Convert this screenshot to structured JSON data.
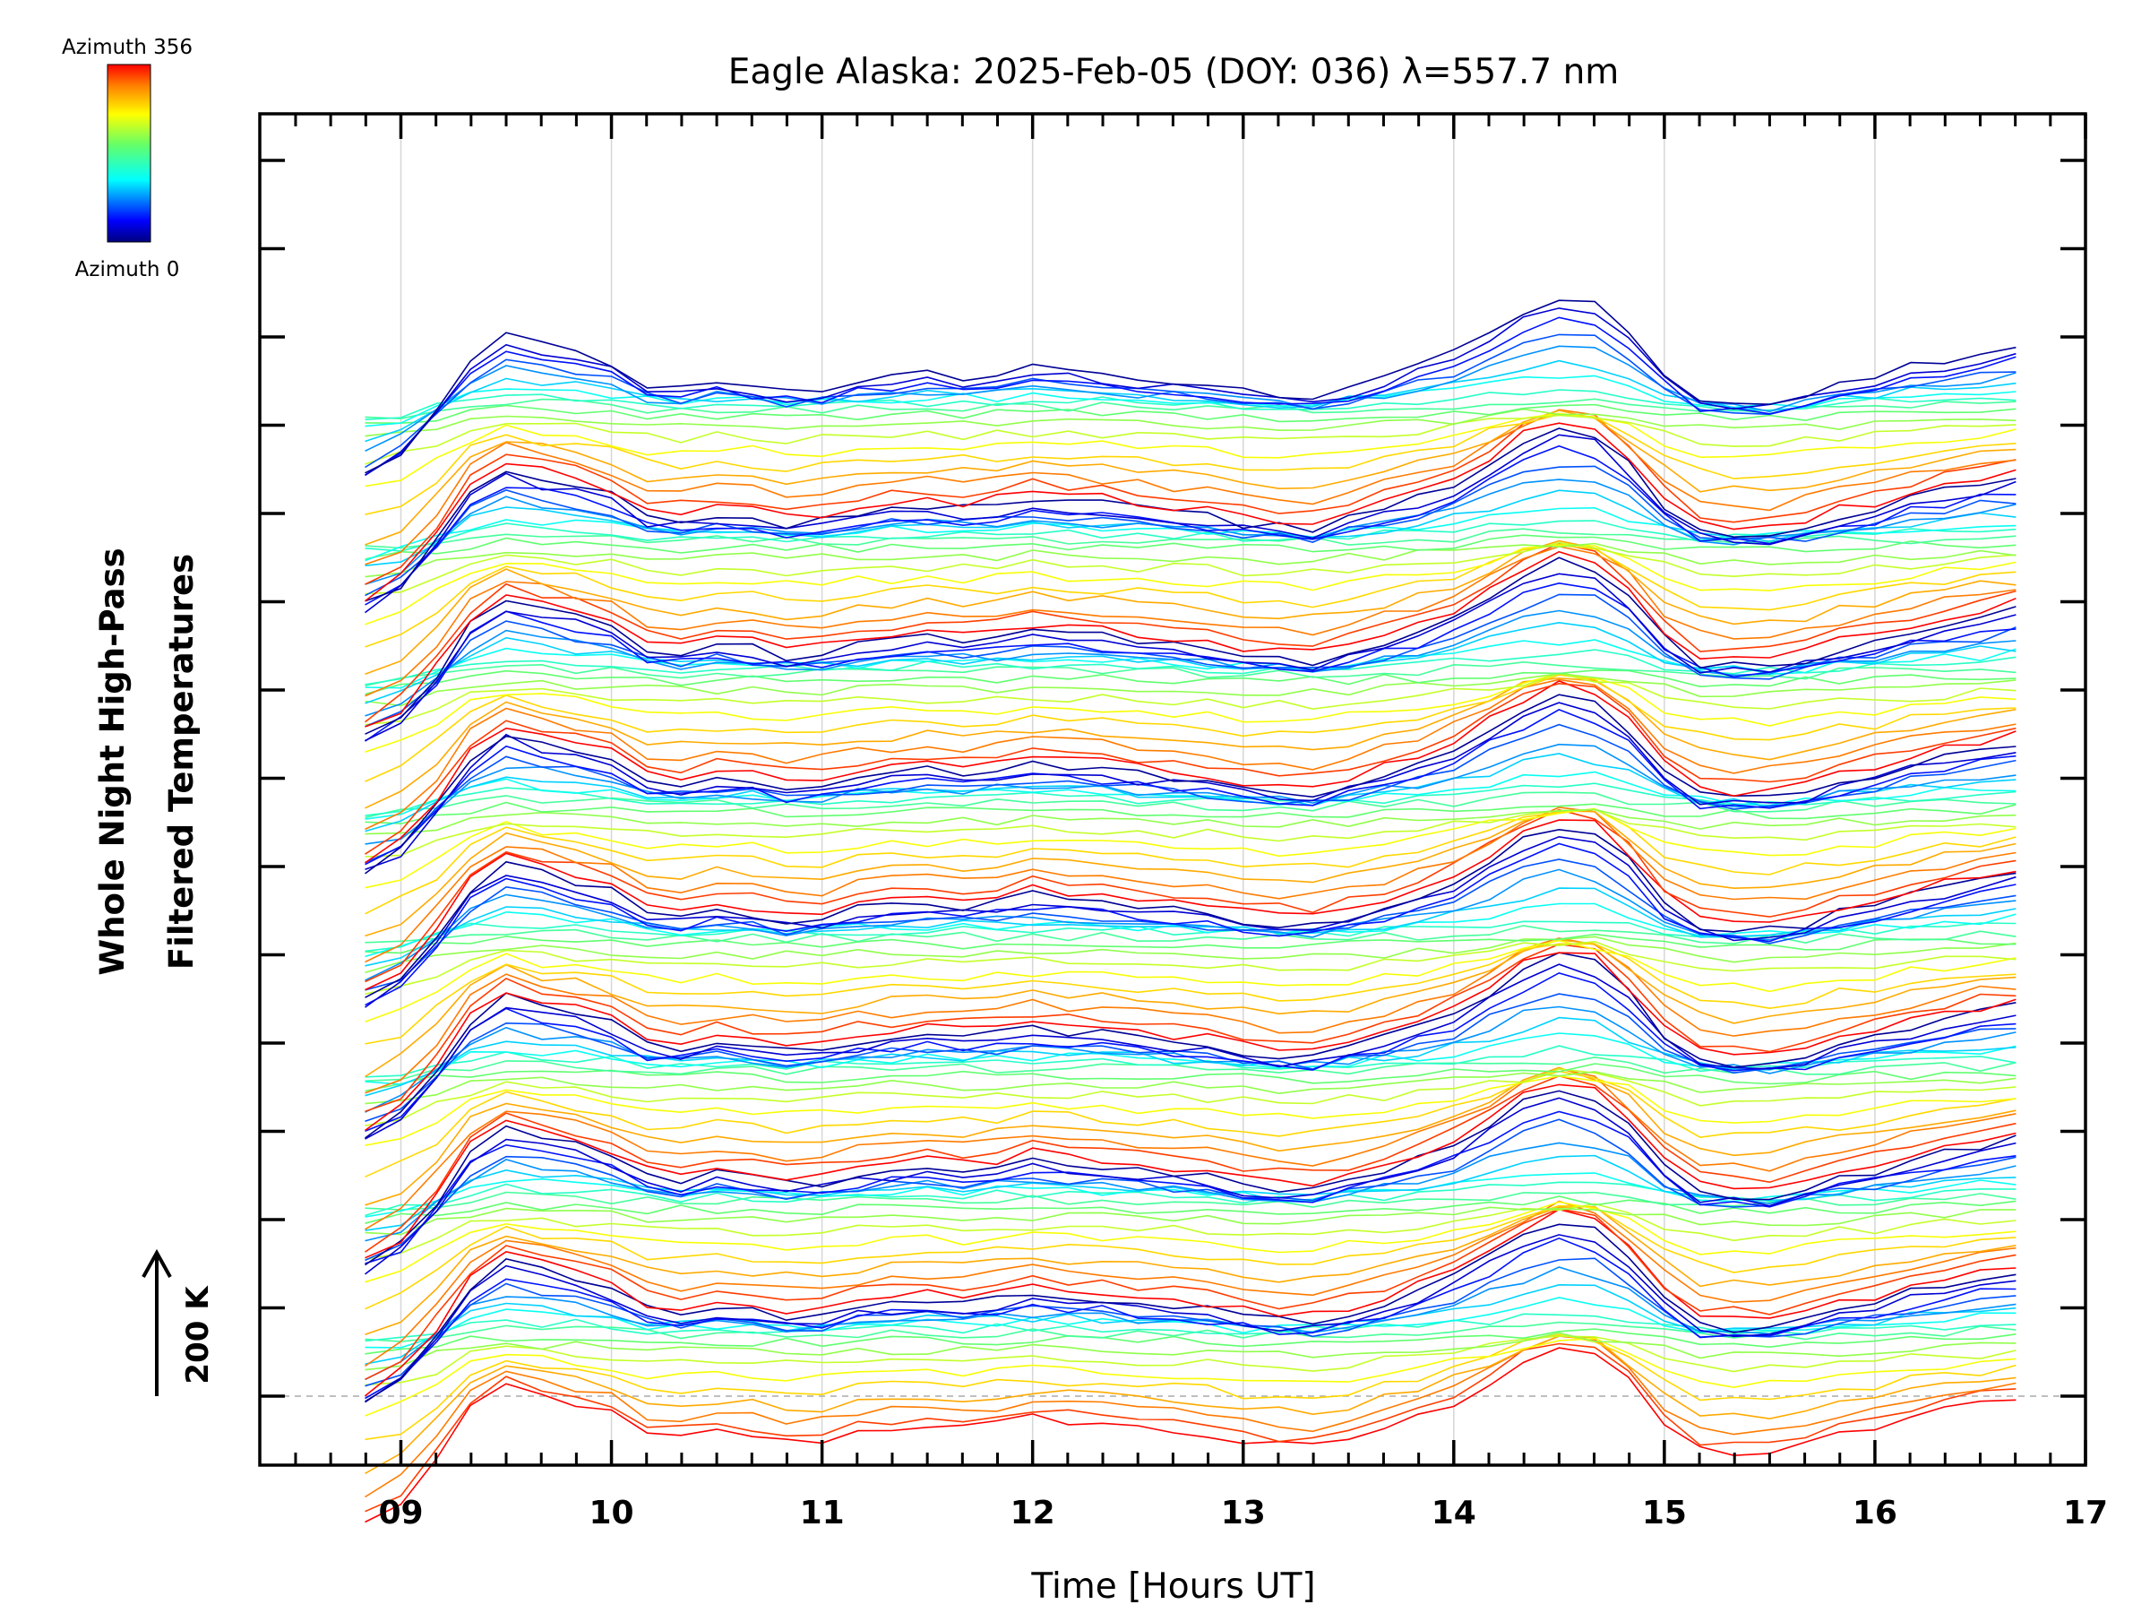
{
  "chart_data": {
    "type": "line",
    "title": "Eagle Alaska: 2025-Feb-05 (DOY: 036) λ=557.7 nm",
    "xlabel": "Time [Hours UT]",
    "ylabel_line1": "Whole Night High-Pass",
    "ylabel_line2": "Filtered Temperatures",
    "xlim": [
      8.33,
      17.0
    ],
    "xticks": [
      "09",
      "10",
      "11",
      "12",
      "13",
      "14",
      "15",
      "16",
      "17"
    ],
    "grid_vertical": true,
    "scale_bar_label": "200 K",
    "colorbar": {
      "top_label": "Azimuth 356",
      "bottom_label": "Azimuth 0",
      "colormap": "rainbow"
    },
    "data_time_range_hours": [
      8.83,
      16.67
    ],
    "stack_groups": 8,
    "traces_per_group": 18,
    "azimuth_range": [
      0,
      356
    ],
    "x": [
      8.83,
      9.0,
      9.17,
      9.33,
      9.5,
      9.67,
      9.83,
      10.0,
      10.17,
      10.33,
      10.5,
      10.67,
      10.83,
      11.0,
      11.17,
      11.33,
      11.5,
      11.67,
      11.83,
      12.0,
      12.17,
      12.33,
      12.5,
      12.67,
      12.83,
      13.0,
      13.17,
      13.33,
      13.5,
      13.67,
      13.83,
      14.0,
      14.17,
      14.33,
      14.5,
      14.67,
      14.83,
      15.0,
      15.17,
      15.33,
      15.5,
      15.67,
      15.83,
      16.0,
      16.17,
      16.33,
      16.5,
      16.67
    ],
    "base_profile_K": [
      -180,
      -150,
      -90,
      -20,
      15,
      0,
      -10,
      -25,
      -55,
      -60,
      -50,
      -55,
      -65,
      -62,
      -50,
      -45,
      -40,
      -45,
      -40,
      -30,
      -35,
      -38,
      -45,
      -50,
      -55,
      -65,
      -70,
      -72,
      -60,
      -45,
      -30,
      -10,
      20,
      50,
      70,
      60,
      20,
      -40,
      -75,
      -80,
      -80,
      -70,
      -55,
      -45,
      -30,
      -20,
      -10,
      0
    ],
    "colors": {
      "axis": "#000000",
      "grid": "#cccccc",
      "baseline": "#aaaaaa"
    }
  }
}
